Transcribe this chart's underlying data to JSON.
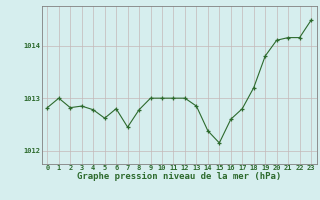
{
  "x": [
    0,
    1,
    2,
    3,
    4,
    5,
    6,
    7,
    8,
    9,
    10,
    11,
    12,
    13,
    14,
    15,
    16,
    17,
    18,
    19,
    20,
    21,
    22,
    23
  ],
  "y": [
    1012.82,
    1013.0,
    1012.82,
    1012.85,
    1012.78,
    1012.62,
    1012.8,
    1012.45,
    1012.78,
    1013.0,
    1013.0,
    1013.0,
    1013.0,
    1012.85,
    1012.38,
    1012.15,
    1012.6,
    1012.8,
    1013.2,
    1013.8,
    1014.1,
    1014.15,
    1014.15,
    1014.48
  ],
  "line_color": "#2d6a2d",
  "marker_color": "#2d6a2d",
  "bg_color": "#d6eeee",
  "grid_color_h": "#c4b8b8",
  "grid_color_v": "#c4b8b8",
  "axis_color": "#2d6a2d",
  "tick_color": "#2d6a2d",
  "xlabel": "Graphe pression niveau de la mer (hPa)",
  "xlabel_fontsize": 6.5,
  "yticks": [
    1012,
    1013,
    1014
  ],
  "ylim": [
    1011.75,
    1014.75
  ],
  "xlim": [
    -0.5,
    23.5
  ],
  "xticks": [
    0,
    1,
    2,
    3,
    4,
    5,
    6,
    7,
    8,
    9,
    10,
    11,
    12,
    13,
    14,
    15,
    16,
    17,
    18,
    19,
    20,
    21,
    22,
    23
  ],
  "tick_fontsize": 5.0,
  "spine_color": "#808080"
}
